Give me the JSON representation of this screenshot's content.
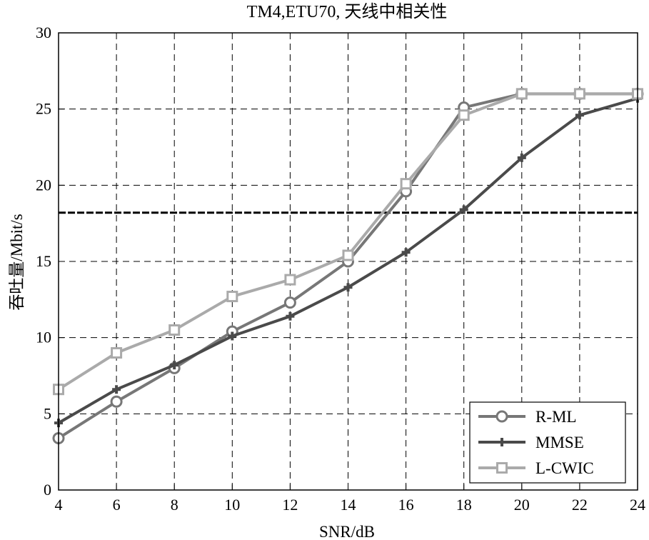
{
  "chart_data": {
    "type": "line",
    "title": "TM4,ETU70, 天线中相关性",
    "xlabel": "SNR/dB",
    "ylabel": "吞吐量/Mbit/s",
    "xlim": [
      4,
      24
    ],
    "ylim": [
      0,
      30
    ],
    "xticks": [
      4,
      6,
      8,
      10,
      12,
      14,
      16,
      18,
      20,
      22,
      24
    ],
    "yticks": [
      0,
      5,
      10,
      15,
      20,
      25,
      30
    ],
    "grid": true,
    "grid_style": "dashed",
    "legend_position": "bottom-right",
    "x": [
      4,
      6,
      8,
      10,
      12,
      14,
      16,
      18,
      20,
      22,
      24
    ],
    "series": [
      {
        "name": "R-ML",
        "marker": "circle",
        "color": "#777777",
        "values": [
          3.4,
          5.8,
          8.0,
          10.4,
          12.3,
          15.0,
          19.6,
          25.1,
          26.0,
          26.0,
          26.0
        ]
      },
      {
        "name": "MMSE",
        "marker": "plus",
        "color": "#4a4a4a",
        "values": [
          4.4,
          6.6,
          8.2,
          10.1,
          11.4,
          13.3,
          15.6,
          18.4,
          21.8,
          24.6,
          25.7
        ]
      },
      {
        "name": "L-CWIC",
        "marker": "square",
        "color": "#aaaaaa",
        "values": [
          6.6,
          9.0,
          10.5,
          12.7,
          13.8,
          15.4,
          20.1,
          24.6,
          26.0,
          26.0,
          26.0
        ]
      }
    ],
    "reference_line": {
      "y": 18.2,
      "style": "dashed",
      "color": "#000000"
    }
  }
}
